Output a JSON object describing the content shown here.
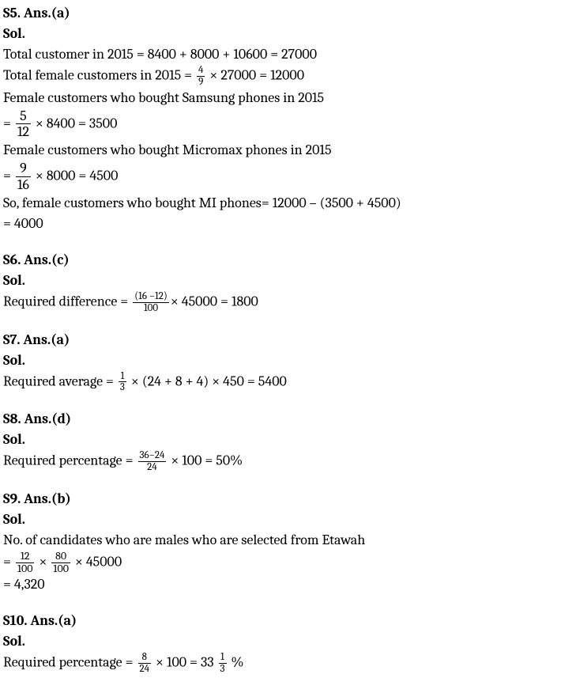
{
  "s5": {
    "header": "S5. Ans.(a)",
    "sol": "Sol.",
    "l1a": "Total customer in 2015 = 8400 + 8000 + 10600 = 27000",
    "l2a": "Total female customers in 2015 = ",
    "f1n": "4",
    "f1d": "9",
    "l2b": " × 27000 = 12000",
    "l3a": "Female customers who bought Samsung phones in 2015",
    "l4a": "= ",
    "f2n": "5",
    "f2d": "12",
    "l4b": " × 8400 = 3500",
    "l5a": "Female customers who bought Micromax phones in 2015",
    "l6a": "= ",
    "f3n": "9",
    "f3d": "16",
    "l6b": " × 8000 = 4500",
    "l7a": "So, female customers who bought MI phones= 12000 – (3500 + 4500)",
    "l8a": "= 4000"
  },
  "s6": {
    "header": "S6. Ans.(c)",
    "sol": "Sol.",
    "l1a": "Required difference = ",
    "f1n": "(16 −12)",
    "f1d": "100",
    "l1b": "× 45000 = 1800"
  },
  "s7": {
    "header": "S7. Ans.(a)",
    "sol": "Sol.",
    "l1a": "Required average = ",
    "f1n": "1",
    "f1d": "3",
    "l1b": " × (24 + 8 + 4) × 450 = 5400"
  },
  "s8": {
    "header": "S8. Ans.(d)",
    "sol": "Sol.",
    "l1a": "Required percentage = ",
    "f1n": "36−24",
    "f1d": "24",
    "l1b": " × 100 = 50%"
  },
  "s9": {
    "header": "S9. Ans.(b)",
    "sol": "Sol.",
    "l1a": "No. of candidates who are males who are  selected from Etawah",
    "l2a": "= ",
    "f1n": "12",
    "f1d": "100",
    "l2b": " × ",
    "f2n": "80",
    "f2d": "100",
    "l2c": " × 45000",
    "l3a": "= 4,320"
  },
  "s10": {
    "header": "S10. Ans.(a)",
    "sol": "Sol.",
    "l1a": "Required percentage = ",
    "f1n": "8",
    "f1d": "24",
    "l1b": " × 100 = 33 ",
    "f2n": "1",
    "f2d": "3",
    "l1c": " %"
  }
}
